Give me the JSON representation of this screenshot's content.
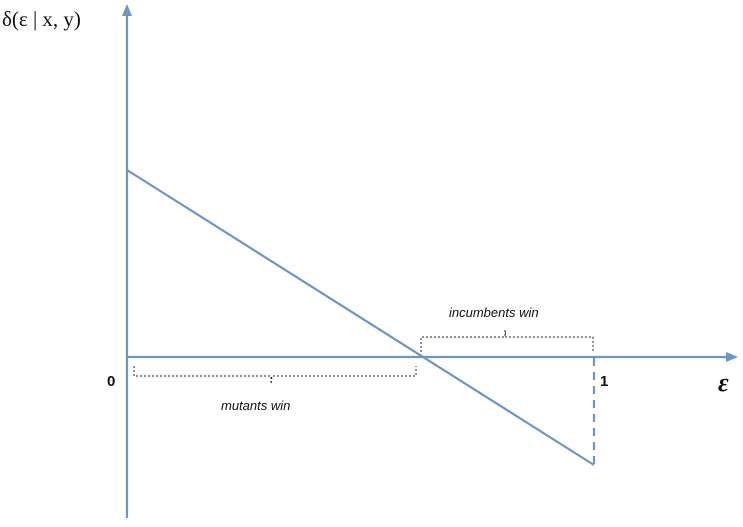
{
  "labels": {
    "y_axis": "δ(ε | x, y)",
    "x_axis": "ε",
    "origin": "0",
    "one": "1",
    "incumbents": "incumbents win",
    "mutants": "mutants win"
  },
  "colors": {
    "axis": "#6b96c6",
    "text": "#111111",
    "brace": "#222222"
  }
}
